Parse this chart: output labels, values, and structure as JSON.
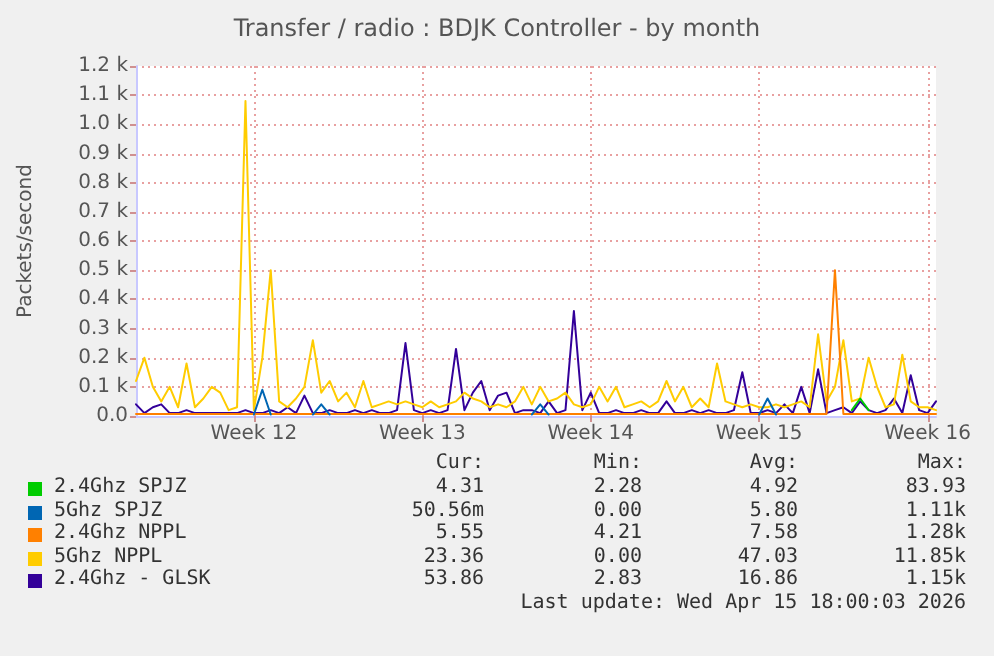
{
  "chart_data": {
    "type": "line",
    "title": "Transfer / radio : BDJK Controller - by month",
    "ylabel": "Packets/second",
    "categories": [
      null,
      null,
      null,
      null,
      null,
      null,
      null,
      null,
      null,
      null,
      null,
      null,
      null,
      null,
      "Week 12",
      null,
      null,
      null,
      null,
      null,
      null,
      null,
      null,
      null,
      null,
      null,
      null,
      null,
      null,
      null,
      null,
      null,
      null,
      null,
      "Week 13",
      null,
      null,
      null,
      null,
      null,
      null,
      null,
      null,
      null,
      null,
      null,
      null,
      null,
      null,
      null,
      null,
      null,
      null,
      null,
      "Week 14",
      null,
      null,
      null,
      null,
      null,
      null,
      null,
      null,
      null,
      null,
      null,
      null,
      null,
      null,
      null,
      null,
      null,
      null,
      null,
      "Week 15",
      null,
      null,
      null,
      null,
      null,
      null,
      null,
      null,
      null,
      null,
      null,
      null,
      null,
      null,
      null,
      null,
      null,
      null,
      null,
      "Week 16",
      null
    ],
    "ylim": [
      0,
      1200
    ],
    "yticks": [
      {
        "value": 0,
        "label": "0.0"
      },
      {
        "value": 100,
        "label": "0.1 k"
      },
      {
        "value": 200,
        "label": "0.2 k"
      },
      {
        "value": 300,
        "label": "0.3 k"
      },
      {
        "value": 400,
        "label": "0.4 k"
      },
      {
        "value": 500,
        "label": "0.5 k"
      },
      {
        "value": 600,
        "label": "0.6 k"
      },
      {
        "value": 700,
        "label": "0.7 k"
      },
      {
        "value": 800,
        "label": "0.8 k"
      },
      {
        "value": 900,
        "label": "0.9 k"
      },
      {
        "value": 1000,
        "label": "1.0 k"
      },
      {
        "value": 1100,
        "label": "1.1 k"
      },
      {
        "value": 1200,
        "label": "1.2 k"
      }
    ],
    "grid": true,
    "legend": "bottom",
    "marker": "none",
    "line_style": "solid",
    "series": [
      {
        "name": "2.4Ghz SPJZ",
        "color": "#00cc00",
        "values": [
          null,
          null,
          null,
          null,
          null,
          null,
          null,
          null,
          null,
          null,
          null,
          null,
          null,
          null,
          null,
          null,
          null,
          null,
          null,
          null,
          null,
          null,
          null,
          null,
          null,
          null,
          null,
          null,
          null,
          null,
          null,
          null,
          null,
          null,
          null,
          null,
          null,
          null,
          null,
          null,
          null,
          null,
          null,
          null,
          null,
          null,
          null,
          null,
          null,
          null,
          null,
          null,
          null,
          null,
          null,
          null,
          null,
          null,
          null,
          null,
          null,
          null,
          null,
          null,
          null,
          null,
          null,
          null,
          null,
          null,
          null,
          null,
          null,
          null,
          null,
          null,
          null,
          null,
          null,
          null,
          null,
          null,
          null,
          null,
          null,
          20,
          60,
          20,
          null,
          null,
          null,
          null,
          null,
          null,
          null,
          null
        ]
      },
      {
        "name": "5Ghz SPJZ",
        "color": "#0066b3",
        "values": [
          null,
          null,
          null,
          null,
          null,
          null,
          null,
          null,
          null,
          null,
          null,
          null,
          null,
          null,
          5,
          90,
          5,
          null,
          null,
          null,
          null,
          5,
          40,
          5,
          null,
          null,
          null,
          null,
          null,
          null,
          null,
          null,
          null,
          null,
          null,
          null,
          null,
          null,
          null,
          null,
          null,
          null,
          null,
          null,
          null,
          null,
          null,
          5,
          40,
          5,
          null,
          null,
          null,
          null,
          null,
          null,
          null,
          null,
          null,
          null,
          null,
          null,
          null,
          null,
          null,
          null,
          null,
          null,
          null,
          null,
          null,
          null,
          null,
          null,
          5,
          60,
          5,
          null,
          null,
          null,
          null,
          null,
          null,
          null,
          null,
          null,
          null,
          null,
          null,
          null,
          null,
          null,
          null,
          null,
          null,
          null
        ]
      },
      {
        "name": "2.4Ghz NPPL",
        "color": "#ff8000",
        "values": [
          7,
          7,
          7,
          7,
          7,
          7,
          7,
          7,
          7,
          7,
          7,
          7,
          7,
          7,
          7,
          7,
          7,
          7,
          7,
          7,
          7,
          7,
          7,
          7,
          7,
          7,
          7,
          7,
          7,
          7,
          7,
          7,
          7,
          7,
          7,
          7,
          7,
          7,
          7,
          7,
          7,
          7,
          7,
          7,
          7,
          7,
          7,
          7,
          7,
          7,
          7,
          7,
          7,
          7,
          7,
          7,
          7,
          7,
          7,
          7,
          7,
          7,
          7,
          7,
          7,
          7,
          7,
          7,
          7,
          7,
          7,
          7,
          7,
          7,
          7,
          7,
          7,
          7,
          7,
          7,
          7,
          7,
          7,
          500,
          7,
          7,
          7,
          7,
          7,
          7,
          7,
          7,
          7,
          7,
          7,
          7
        ]
      },
      {
        "name": "5Ghz NPPL",
        "color": "#ffcc00",
        "values": [
          120,
          200,
          100,
          50,
          100,
          30,
          180,
          30,
          60,
          100,
          80,
          20,
          30,
          1080,
          20,
          200,
          500,
          50,
          30,
          60,
          100,
          260,
          80,
          120,
          50,
          80,
          30,
          120,
          30,
          40,
          50,
          40,
          50,
          40,
          30,
          50,
          30,
          40,
          50,
          80,
          60,
          50,
          30,
          40,
          30,
          50,
          100,
          40,
          100,
          50,
          60,
          80,
          40,
          30,
          40,
          100,
          50,
          100,
          30,
          40,
          50,
          30,
          50,
          120,
          50,
          100,
          30,
          60,
          30,
          180,
          50,
          40,
          30,
          40,
          30,
          30,
          40,
          30,
          40,
          50,
          30,
          280,
          50,
          100,
          260,
          50,
          60,
          200,
          100,
          30,
          40,
          210,
          50,
          30,
          30,
          20
        ]
      },
      {
        "name": "2.4Ghz - GLSK",
        "color": "#330099",
        "values": [
          40,
          10,
          30,
          40,
          10,
          10,
          20,
          10,
          10,
          10,
          10,
          10,
          10,
          20,
          10,
          10,
          20,
          10,
          30,
          10,
          70,
          10,
          10,
          20,
          10,
          10,
          20,
          10,
          20,
          10,
          10,
          20,
          250,
          20,
          10,
          20,
          10,
          20,
          230,
          20,
          80,
          120,
          20,
          70,
          80,
          10,
          20,
          20,
          10,
          50,
          10,
          20,
          360,
          20,
          80,
          10,
          10,
          20,
          10,
          10,
          20,
          10,
          10,
          50,
          10,
          10,
          20,
          10,
          20,
          10,
          10,
          20,
          150,
          10,
          10,
          20,
          10,
          40,
          10,
          100,
          10,
          160,
          10,
          20,
          30,
          10,
          50,
          20,
          10,
          20,
          60,
          10,
          140,
          20,
          10,
          50
        ]
      }
    ],
    "annotations": [
      "Cur:",
      "Min:",
      "Avg:",
      "Max:",
      "4.31",
      "2.28",
      "4.92",
      "83.93",
      "50.56m",
      "0.00",
      "5.80",
      "1.11k",
      "5.55",
      "4.21",
      "7.58",
      "1.28k",
      "23.36",
      "0.00",
      "47.03",
      "11.85k",
      "53.86",
      "2.83",
      "16.86",
      "1.15k",
      "Last update: Wed Apr 15 18:00:03 2026"
    ]
  }
}
